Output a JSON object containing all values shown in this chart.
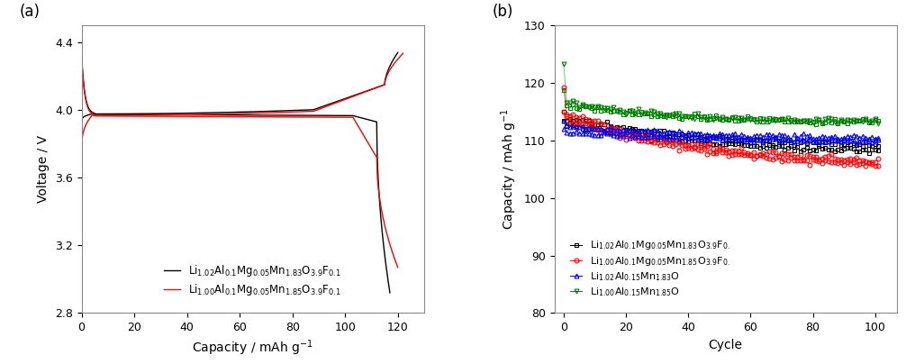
{
  "panel_a": {
    "title": "(a)",
    "xlabel": "Capacity / mAh g$^{-1}$",
    "ylabel": "Voltage / V",
    "xlim": [
      0,
      130
    ],
    "ylim": [
      2.8,
      4.5
    ],
    "xticks": [
      0,
      20,
      40,
      60,
      80,
      100,
      120
    ],
    "yticks": [
      2.8,
      3.2,
      3.6,
      4.0,
      4.4
    ],
    "legend": [
      {
        "label": "Li$_{1.02}$Al$_{0.1}$Mg$_{0.05}$Mn$_{1.83}$O$_{3.9}$F$_{0.1}$",
        "color": "black"
      },
      {
        "label": "Li$_{1.00}$Al$_{0.1}$Mg$_{0.05}$Mn$_{1.85}$O$_{3.9}$F$_{0.1}$",
        "color": "red"
      }
    ]
  },
  "panel_b": {
    "title": "(b)",
    "xlabel": "Cycle",
    "ylabel": "Capacity / mAh g$^{-1}$",
    "xlim": [
      -3,
      107
    ],
    "ylim": [
      80,
      130
    ],
    "xticks": [
      0,
      20,
      40,
      60,
      80,
      100
    ],
    "yticks": [
      80,
      90,
      100,
      110,
      120,
      130
    ],
    "legend": [
      {
        "label": "Li$_{1.02}$Al$_{0.1}$Mg$_{0.05}$Mn$_{1.83}$O$_{3.9}$F$_{0.}$",
        "color": "black"
      },
      {
        "label": "Li$_{1.00}$Al$_{0.1}$Mg$_{0.05}$Mn$_{1.85}$O$_{3.9}$F$_{0.}$",
        "color": "red"
      },
      {
        "label": "Li$_{1.02}$Al$_{0.15}$Mn$_{1.83}$O",
        "color": "blue"
      },
      {
        "label": "Li$_{1.00}$Al$_{0.15}$Mn$_{1.85}$O",
        "color": "green"
      }
    ]
  }
}
